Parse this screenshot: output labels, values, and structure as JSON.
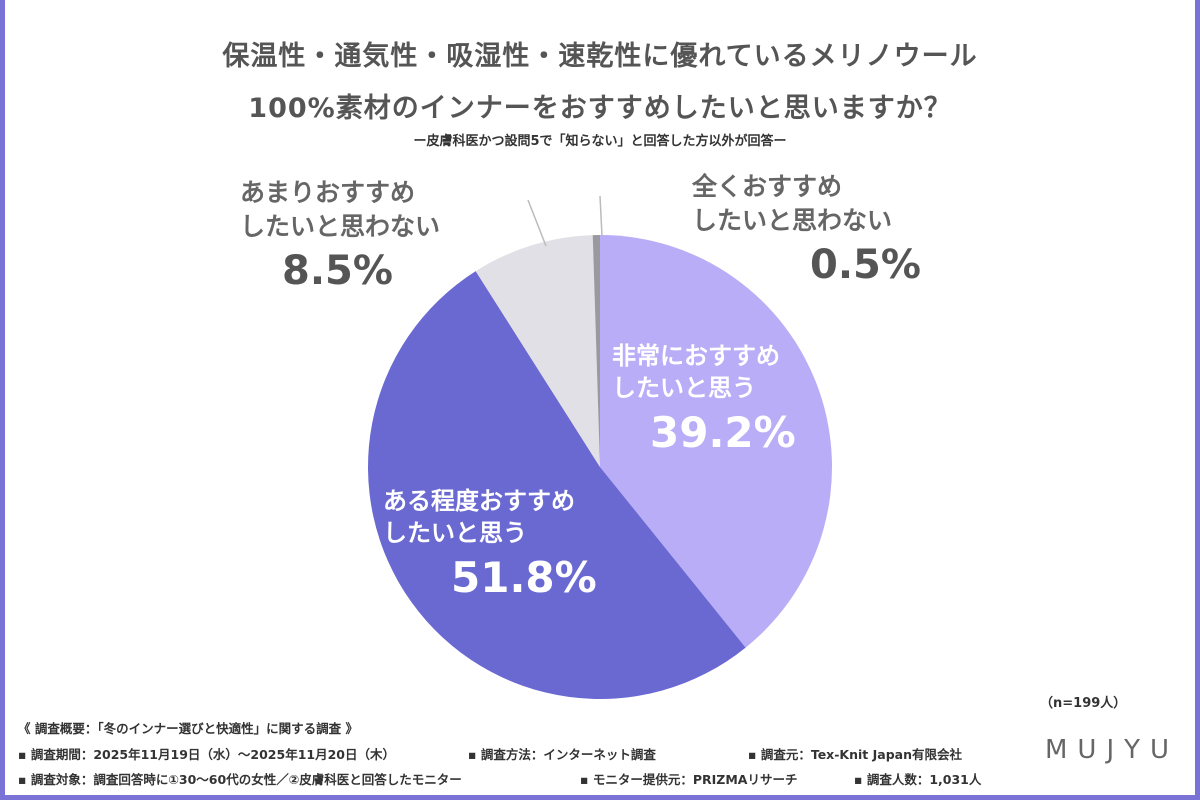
{
  "chart_data": {
    "type": "pie",
    "title": "保温性・通気性・吸湿性・速乾性に優れているメリノウール 100%素材のインナーをおすすめしたいと思いますか？",
    "title_lines": [
      "保温性・通気性・吸湿性・速乾性に優れているメリノウール",
      "100%素材のインナーをおすすめしたいと思いますか？"
    ],
    "subtitle": "ー皮膚科医かつ設問5で「知らない」と回答した方以外が回答ー",
    "start": "top",
    "direction": "clockwise",
    "slices": [
      {
        "label_lines": [
          "非常におすすめ",
          "したいと思う"
        ],
        "value": 39.2,
        "display": "39.2%",
        "color": "#b9adf8"
      },
      {
        "label_lines": [
          "ある程度おすすめ",
          "したいと思う"
        ],
        "value": 51.8,
        "display": "51.8%",
        "color": "#6a69d2"
      },
      {
        "label_lines": [
          "あまりおすすめ",
          "したいと思わない"
        ],
        "value": 8.5,
        "display": "8.5%",
        "color": "#e1e0e6"
      },
      {
        "label_lines": [
          "全くおすすめ",
          "したいと思わない"
        ],
        "value": 0.5,
        "display": "0.5%",
        "color": "#9a99a0"
      }
    ],
    "sample_size": "（n=199人）"
  },
  "footer": {
    "heading": "《 調査概要：「冬のインナー選びと快適性」に関する調査 》",
    "row1": [
      "▪ 調査期間：2025年11月19日（水）～2025年11月20日（木）",
      "▪ 調査方法：インターネット調査",
      "▪ 調査元：Tex-Knit Japan有限会社"
    ],
    "row2": [
      "▪ 調査対象：調査回答時に①30～60代の女性／②皮膚科医と回答したモニター",
      "▪ モニター提供元：PRIZMAリサーチ",
      "▪ 調査人数：1,031人"
    ]
  },
  "logo": "MUJYU"
}
